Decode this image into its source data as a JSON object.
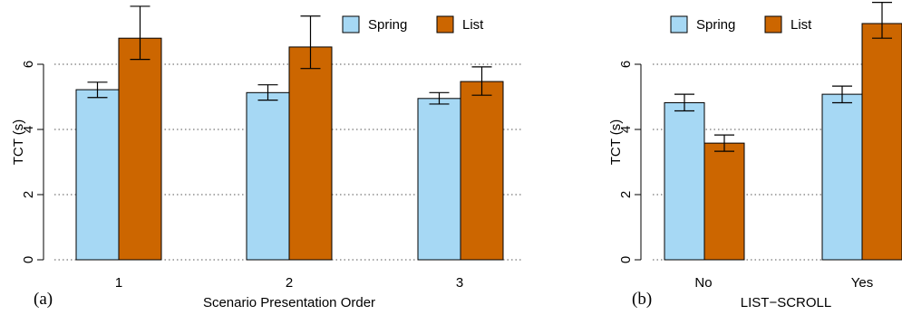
{
  "colors": {
    "spring": "#a6d8f4",
    "list": "#cc6600",
    "grid": "#555555",
    "axis": "#000000"
  },
  "chart_data": [
    {
      "type": "bar",
      "panel_label": "(a)",
      "xlabel": "Scenario Presentation Order",
      "ylabel": "TCT (s)",
      "categories": [
        "1",
        "2",
        "3"
      ],
      "ylim": [
        0,
        7.9
      ],
      "yticks": [
        "0",
        "2",
        "4",
        "6"
      ],
      "grid": "horizontal dotted",
      "legend": "top-right",
      "series": [
        {
          "name": "Spring",
          "values": [
            5.22,
            5.13,
            4.95
          ],
          "err_low": [
            4.98,
            4.9,
            4.78
          ],
          "err_high": [
            5.45,
            5.37,
            5.13
          ]
        },
        {
          "name": "List",
          "values": [
            6.8,
            6.53,
            5.47
          ],
          "err_low": [
            6.15,
            5.87,
            5.05
          ],
          "err_high": [
            7.78,
            7.48,
            5.92
          ]
        }
      ]
    },
    {
      "type": "bar",
      "panel_label": "(b)",
      "xlabel": "LIST−SCROLL",
      "ylabel": "TCT (s)",
      "categories": [
        "No",
        "Yes"
      ],
      "ylim": [
        0,
        7.9
      ],
      "yticks": [
        "0",
        "2",
        "4",
        "6"
      ],
      "grid": "horizontal dotted",
      "legend": "top-left",
      "series": [
        {
          "name": "Spring",
          "values": [
            4.82,
            5.08
          ],
          "err_low": [
            4.57,
            4.82
          ],
          "err_high": [
            5.08,
            5.33
          ]
        },
        {
          "name": "List",
          "values": [
            3.58,
            7.25
          ],
          "err_low": [
            3.33,
            6.8
          ],
          "err_high": [
            3.83,
            7.9
          ]
        }
      ]
    }
  ]
}
